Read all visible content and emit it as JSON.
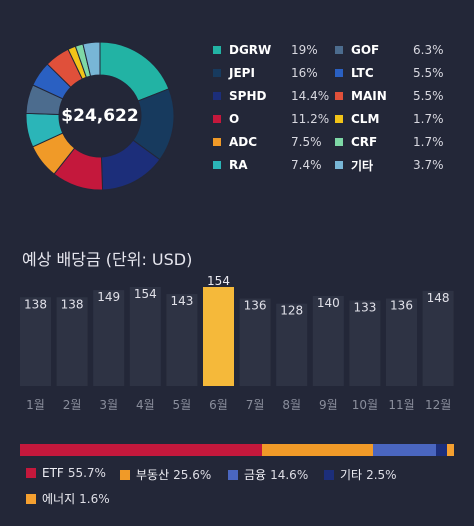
{
  "portfolio": {
    "total": "$24,622",
    "holdings": [
      {
        "ticker": "DGRW",
        "percent": "19%",
        "value": 19.0,
        "color": "#22b3a4"
      },
      {
        "ticker": "JEPI",
        "percent": "16%",
        "value": 16.0,
        "color": "#173a5e"
      },
      {
        "ticker": "SPHD",
        "percent": "14.4%",
        "value": 14.4,
        "color": "#1c2e7a"
      },
      {
        "ticker": "O",
        "percent": "11.2%",
        "value": 11.2,
        "color": "#c4183c"
      },
      {
        "ticker": "ADC",
        "percent": "7.5%",
        "value": 7.5,
        "color": "#f09a28"
      },
      {
        "ticker": "RA",
        "percent": "7.4%",
        "value": 7.4,
        "color": "#2bb5b8"
      },
      {
        "ticker": "GOF",
        "percent": "6.3%",
        "value": 6.3,
        "color": "#4c6c8e"
      },
      {
        "ticker": "LTC",
        "percent": "5.5%",
        "value": 5.5,
        "color": "#2a60c2"
      },
      {
        "ticker": "MAIN",
        "percent": "5.5%",
        "value": 5.5,
        "color": "#e0503a"
      },
      {
        "ticker": "CLM",
        "percent": "1.7%",
        "value": 1.7,
        "color": "#f2c418"
      },
      {
        "ticker": "CRF",
        "percent": "1.7%",
        "value": 1.7,
        "color": "#7ed8a6"
      },
      {
        "ticker": "기타",
        "percent": "3.7%",
        "value": 3.7,
        "color": "#78b6d6"
      }
    ]
  },
  "dividends": {
    "title": "예상 배당금 (단위: USD)",
    "highlight_color": "#f5b93a",
    "bar_color": "#2e3344"
  },
  "chart_data": {
    "type": "bar",
    "title": "예상 배당금 (단위: USD)",
    "categories": [
      "1월",
      "2월",
      "3월",
      "4월",
      "5월",
      "6월",
      "7월",
      "8월",
      "9월",
      "10월",
      "11월",
      "12월"
    ],
    "values": [
      138,
      138,
      149,
      154,
      143,
      154,
      136,
      128,
      140,
      133,
      136,
      148
    ],
    "highlighted_index": 5,
    "ylim": [
      0,
      154
    ],
    "grid": false,
    "legend": "none"
  },
  "allocation": {
    "items": [
      {
        "name": "ETF",
        "percent": "55.7%",
        "value": 55.7,
        "color": "#c4183c"
      },
      {
        "name": "부동산",
        "percent": "25.6%",
        "value": 25.6,
        "color": "#f09a28"
      },
      {
        "name": "금융",
        "percent": "14.6%",
        "value": 14.6,
        "color": "#4a66c0"
      },
      {
        "name": "기타",
        "percent": "2.5%",
        "value": 2.5,
        "color": "#1c2e7a"
      },
      {
        "name": "에너지",
        "percent": "1.6%",
        "value": 1.6,
        "color": "#f5a030"
      }
    ]
  }
}
